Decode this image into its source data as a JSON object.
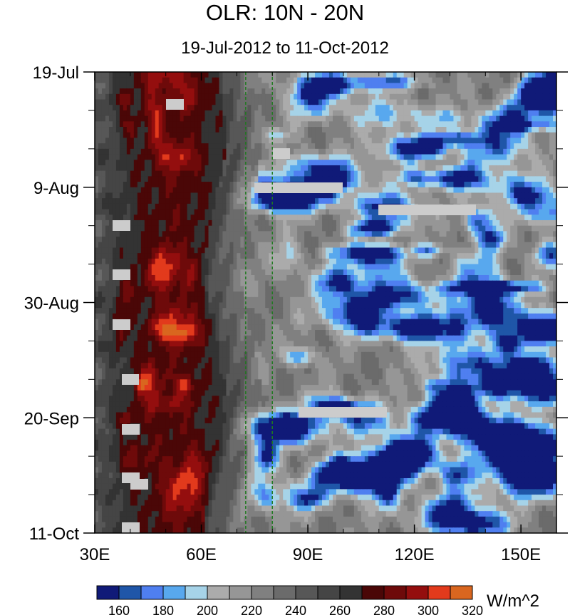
{
  "chart_data": {
    "type": "heatmap",
    "title": "OLR: 10N - 20N",
    "subtitle": "19-Jul-2012 to 11-Oct-2012",
    "x_axis": {
      "range": [
        30,
        160
      ],
      "ticks": [
        {
          "value": 30,
          "label": "30E"
        },
        {
          "value": 60,
          "label": "60E"
        },
        {
          "value": 90,
          "label": "90E"
        },
        {
          "value": 120,
          "label": "120E"
        },
        {
          "value": 150,
          "label": "150E"
        }
      ]
    },
    "y_axis": {
      "range": [
        "2012-07-19",
        "2012-10-11"
      ],
      "ticks": [
        {
          "value": "2012-07-19",
          "label": "19-Jul"
        },
        {
          "value": "2012-08-09",
          "label": "9-Aug"
        },
        {
          "value": "2012-08-30",
          "label": "30-Aug"
        },
        {
          "value": "2012-09-20",
          "label": "20-Sep"
        },
        {
          "value": "2012-10-11",
          "label": "11-Oct"
        }
      ]
    },
    "reference_lines_longitude": [
      72.5,
      80
    ],
    "colorbar": {
      "unit": "W/m^2",
      "levels": [
        160,
        170,
        180,
        190,
        200,
        210,
        220,
        230,
        240,
        250,
        260,
        270,
        280,
        290,
        300,
        310,
        320
      ],
      "labels": [
        "160",
        "180",
        "200",
        "220",
        "240",
        "260",
        "280",
        "300",
        "320"
      ],
      "colors": [
        "#101a78",
        "#1f56a8",
        "#4f7ff0",
        "#58a8ee",
        "#a6d3e8",
        "#ababab",
        "#969696",
        "#808080",
        "#6b6b6b",
        "#575757",
        "#454545",
        "#333333",
        "#4a0707",
        "#6e0a0a",
        "#940e0e",
        "#e23a1c",
        "#d9661f"
      ]
    },
    "missing_color": "#cccccc"
  }
}
